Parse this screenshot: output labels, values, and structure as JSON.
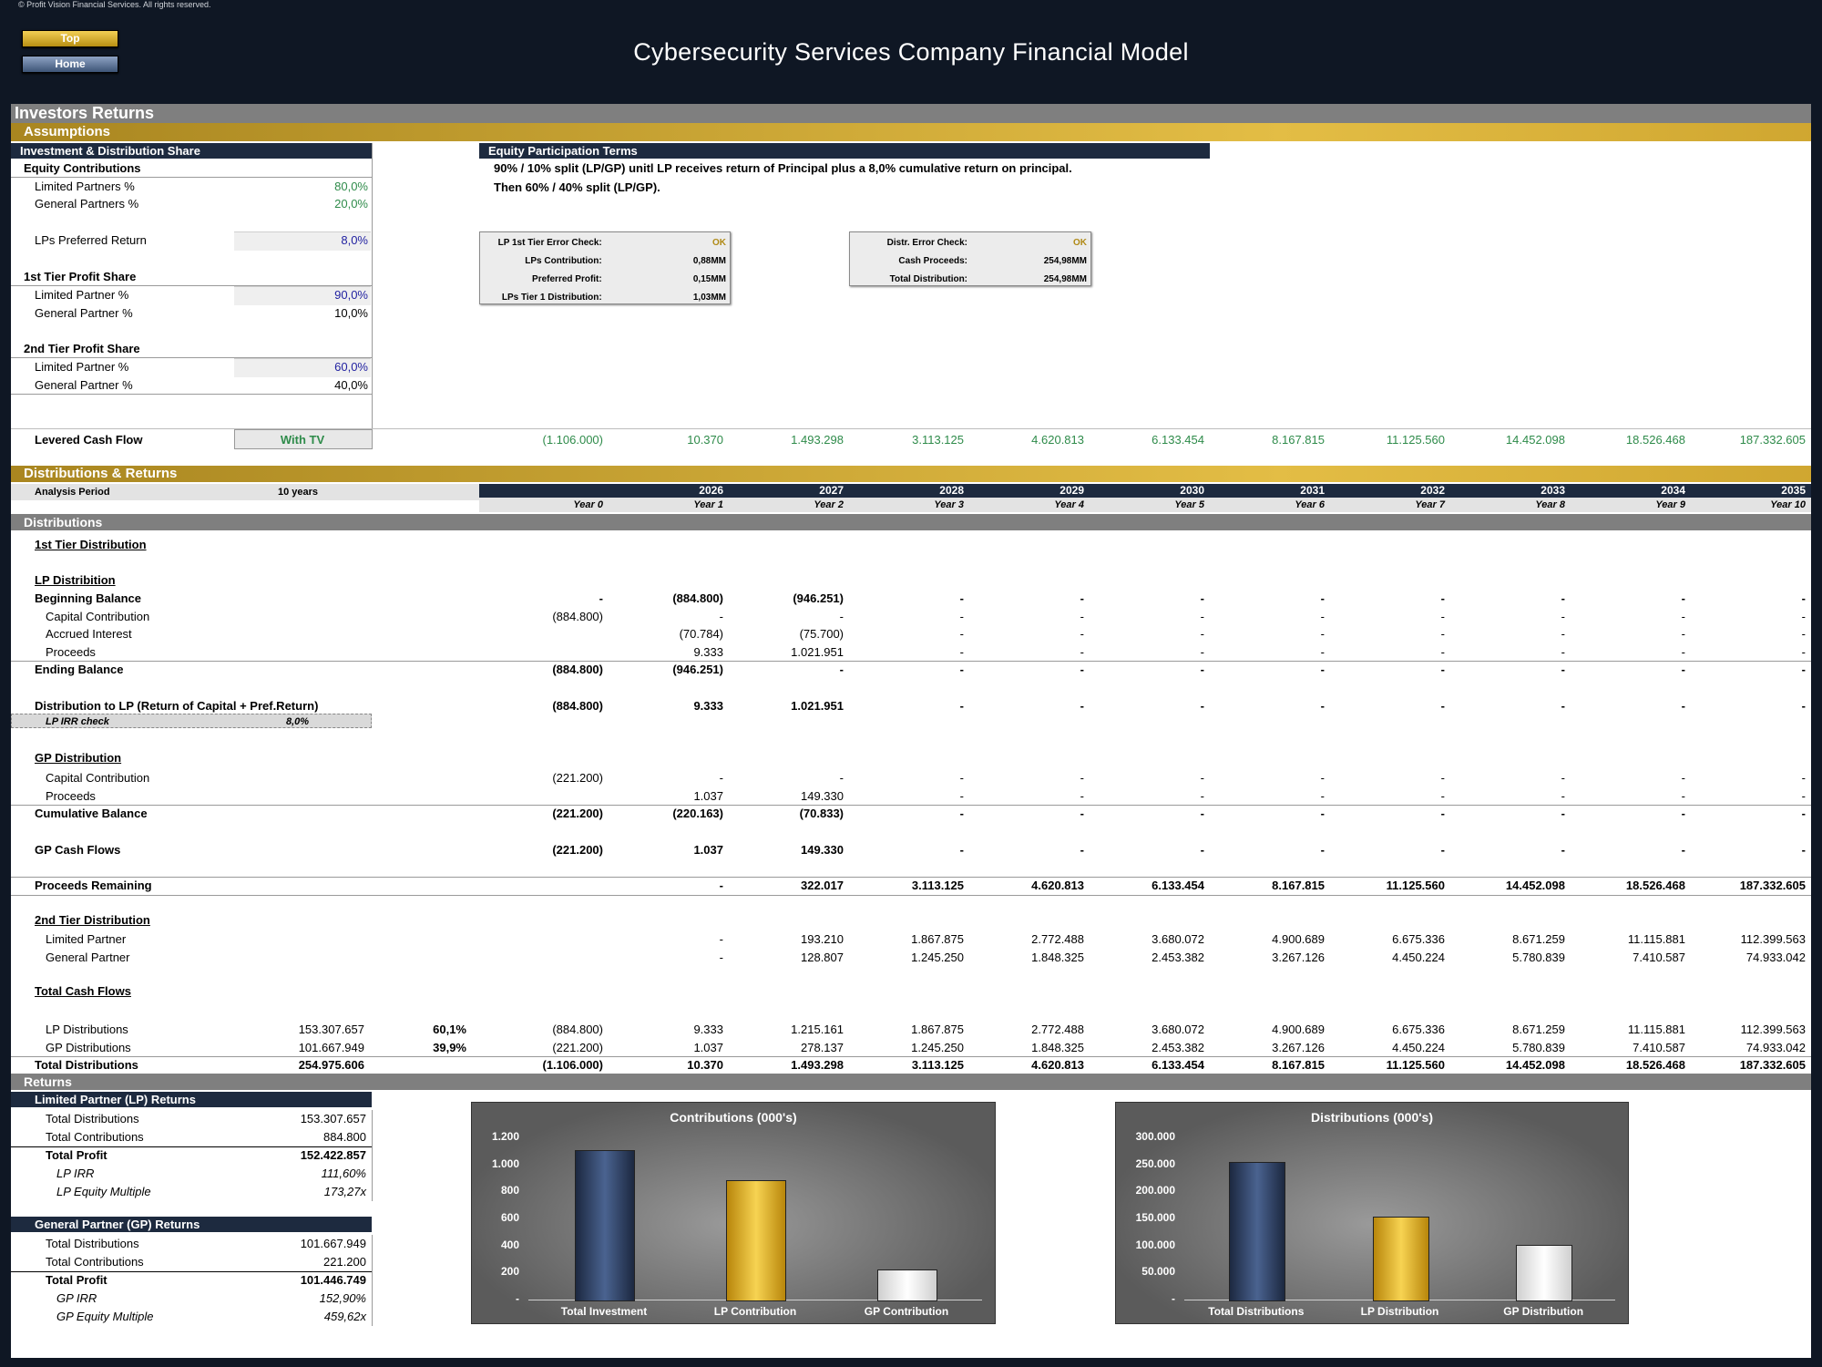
{
  "copyright": "© Profit Vision Financial Services. All rights reserved.",
  "nav": {
    "top": "Top",
    "home": "Home"
  },
  "title": "Cybersecurity Services Company Financial Model",
  "sections": {
    "investors_returns": "Investors Returns",
    "assumptions": "Assumptions",
    "distributions_returns": "Distributions & Returns",
    "distributions": "Distributions",
    "returns": "Returns"
  },
  "assumptions": {
    "header": "Investment & Distribution Share",
    "equity_contributions": "Equity Contributions",
    "lp_pct_label": "Limited Partners %",
    "lp_pct": "80,0%",
    "gp_pct_label": "General Partners %",
    "gp_pct": "20,0%",
    "pref_label": "LPs Preferred Return",
    "pref": "8,0%",
    "tier1": "1st Tier Profit Share",
    "tier1_lp_label": "Limited Partner %",
    "tier1_lp": "90,0%",
    "tier1_gp_label": "General Partner %",
    "tier1_gp": "10,0%",
    "tier2": "2nd Tier Profit Share",
    "tier2_lp_label": "Limited Partner %",
    "tier2_lp": "60,0%",
    "tier2_gp_label": "General Partner %",
    "tier2_gp": "40,0%"
  },
  "terms": {
    "header": "Equity Participation Terms",
    "line1": "90% / 10% split (LP/GP) unitl LP receives return of Principal plus a 8,0% cumulative return on principal.",
    "line2": "Then 60% / 40% split (LP/GP)."
  },
  "check1": [
    {
      "label": "LP 1st Tier Error Check:",
      "value": "OK"
    },
    {
      "label": "LPs Contribution:",
      "value": "0,88MM"
    },
    {
      "label": "Preferred Profit:",
      "value": "0,15MM"
    },
    {
      "label": "LPs Tier 1 Distribution:",
      "value": "1,03MM"
    }
  ],
  "check2": [
    {
      "label": "Distr. Error Check:",
      "value": "OK"
    },
    {
      "label": "Cash Proceeds:",
      "value": "254,98MM"
    },
    {
      "label": "Total Distribution:",
      "value": "254,98MM"
    }
  ],
  "levered": {
    "label": "Levered Cash Flow",
    "selector": "With TV",
    "values": [
      "(1.106.000)",
      "10.370",
      "1.493.298",
      "3.113.125",
      "4.620.813",
      "6.133.454",
      "8.167.815",
      "11.125.560",
      "14.452.098",
      "18.526.468",
      "187.332.605"
    ]
  },
  "period": {
    "label": "Analysis Period",
    "value": "10 years"
  },
  "years": [
    "",
    "2026",
    "2027",
    "2028",
    "2029",
    "2030",
    "2031",
    "2032",
    "2033",
    "2034",
    "2035"
  ],
  "year_idx": [
    "Year 0",
    "Year 1",
    "Year 2",
    "Year 3",
    "Year 4",
    "Year 5",
    "Year 6",
    "Year 7",
    "Year 8",
    "Year 9",
    "Year 10"
  ],
  "dist": {
    "tier1_title": "1st Tier Distribution",
    "lp_title": "LP Distribition",
    "lp_irr_label": "LP IRR check",
    "lp_irr": "8,0%",
    "gp_title": "GP Distribution",
    "tier2_title": "2nd Tier Distribution",
    "total_title": "Total Cash Flows",
    "rows": [
      {
        "label": "Beginning Balance",
        "bold": true,
        "indent": 0,
        "cells": [
          "-",
          "(884.800)",
          "(946.251)",
          "-",
          "-",
          "-",
          "-",
          "-",
          "-",
          "-",
          "-"
        ]
      },
      {
        "label": "Capital Contribution",
        "indent": 1,
        "cells": [
          "(884.800)",
          "-",
          "-",
          "-",
          "-",
          "-",
          "-",
          "-",
          "-",
          "-",
          "-"
        ]
      },
      {
        "label": "Accrued Interest",
        "indent": 1,
        "cells": [
          "",
          "(70.784)",
          "(75.700)",
          "-",
          "-",
          "-",
          "-",
          "-",
          "-",
          "-",
          "-"
        ]
      },
      {
        "label": "Proceeds",
        "indent": 1,
        "cells": [
          "",
          "9.333",
          "1.021.951",
          "-",
          "-",
          "-",
          "-",
          "-",
          "-",
          "-",
          "-"
        ]
      },
      {
        "label": "Ending Balance",
        "bold": true,
        "indent": 0,
        "cells": [
          "(884.800)",
          "(946.251)",
          "-",
          "-",
          "-",
          "-",
          "-",
          "-",
          "-",
          "-",
          "-"
        ]
      },
      {
        "label": "Distribution to LP (Return of Capital + Pref.Return)",
        "bold": true,
        "indent": 0,
        "cells": [
          "(884.800)",
          "9.333",
          "1.021.951",
          "-",
          "-",
          "-",
          "-",
          "-",
          "-",
          "-",
          "-"
        ]
      },
      {
        "label": "Capital Contribution",
        "indent": 1,
        "cells": [
          "(221.200)",
          "-",
          "-",
          "-",
          "-",
          "-",
          "-",
          "-",
          "-",
          "-",
          "-"
        ]
      },
      {
        "label": "Proceeds",
        "indent": 1,
        "cells": [
          "",
          "1.037",
          "149.330",
          "-",
          "-",
          "-",
          "-",
          "-",
          "-",
          "-",
          "-"
        ]
      },
      {
        "label": "Cumulative Balance",
        "bold": true,
        "indent": 0,
        "cells": [
          "(221.200)",
          "(220.163)",
          "(70.833)",
          "-",
          "-",
          "-",
          "-",
          "-",
          "-",
          "-",
          "-"
        ]
      },
      {
        "label": "GP Cash Flows",
        "bold": true,
        "indent": 0,
        "cells": [
          "(221.200)",
          "1.037",
          "149.330",
          "-",
          "-",
          "-",
          "-",
          "-",
          "-",
          "-",
          "-"
        ]
      },
      {
        "label": "Proceeds Remaining",
        "bold": true,
        "indent": 0,
        "cells": [
          "",
          "-",
          "322.017",
          "3.113.125",
          "4.620.813",
          "6.133.454",
          "8.167.815",
          "11.125.560",
          "14.452.098",
          "18.526.468",
          "187.332.605"
        ]
      },
      {
        "label": "Limited Partner",
        "indent": 1,
        "cells": [
          "",
          "-",
          "193.210",
          "1.867.875",
          "2.772.488",
          "3.680.072",
          "4.900.689",
          "6.675.336",
          "8.671.259",
          "11.115.881",
          "112.399.563"
        ]
      },
      {
        "label": "General Partner",
        "indent": 1,
        "cells": [
          "",
          "-",
          "128.807",
          "1.245.250",
          "1.848.325",
          "2.453.382",
          "3.267.126",
          "4.450.224",
          "5.780.839",
          "7.410.587",
          "74.933.042"
        ]
      },
      {
        "label": "LP Distributions",
        "indent": 1,
        "total": "153.307.657",
        "pct": "60,1%",
        "cells": [
          "(884.800)",
          "9.333",
          "1.215.161",
          "1.867.875",
          "2.772.488",
          "3.680.072",
          "4.900.689",
          "6.675.336",
          "8.671.259",
          "11.115.881",
          "112.399.563"
        ]
      },
      {
        "label": "GP Distributions",
        "indent": 1,
        "total": "101.667.949",
        "pct": "39,9%",
        "cells": [
          "(221.200)",
          "1.037",
          "278.137",
          "1.245.250",
          "1.848.325",
          "2.453.382",
          "3.267.126",
          "4.450.224",
          "5.780.839",
          "7.410.587",
          "74.933.042"
        ]
      },
      {
        "label": "Total Distributions",
        "bold": true,
        "indent": 0,
        "total": "254.975.606",
        "cells": [
          "(1.106.000)",
          "10.370",
          "1.493.298",
          "3.113.125",
          "4.620.813",
          "6.133.454",
          "8.167.815",
          "11.125.560",
          "14.452.098",
          "18.526.468",
          "187.332.605"
        ]
      }
    ]
  },
  "lp_returns": {
    "header": "Limited Partner (LP) Returns",
    "rows": [
      {
        "label": "Total Distributions",
        "value": "153.307.657"
      },
      {
        "label": "Total Contributions",
        "value": "884.800"
      },
      {
        "label": "Total Profit",
        "value": "152.422.857",
        "bold": true
      },
      {
        "label": "LP IRR",
        "value": "111,60%",
        "italic": true
      },
      {
        "label": "LP Equity Multiple",
        "value": "173,27x",
        "italic": true
      }
    ]
  },
  "gp_returns": {
    "header": "General Partner (GP) Returns",
    "rows": [
      {
        "label": "Total Distributions",
        "value": "101.667.949"
      },
      {
        "label": "Total Contributions",
        "value": "221.200"
      },
      {
        "label": "Total Profit",
        "value": "101.446.749",
        "bold": true
      },
      {
        "label": "GP IRR",
        "value": "152,90%",
        "italic": true
      },
      {
        "label": "GP Equity Multiple",
        "value": "459,62x",
        "italic": true
      }
    ]
  },
  "chart_data": [
    {
      "type": "bar",
      "title": "Contributions (000's)",
      "categories": [
        "Total Investment",
        "LP Contribution",
        "GP Contribution"
      ],
      "values": [
        1106,
        885,
        221
      ],
      "ylim": [
        0,
        1200
      ],
      "yticks": [
        "-",
        "200",
        "400",
        "600",
        "800",
        "1.000",
        "1.200"
      ],
      "colors": [
        "#2c3f63",
        "#e9b923",
        "#f4f4f4"
      ]
    },
    {
      "type": "bar",
      "title": "Distributions (000's)",
      "categories": [
        "Total Distributions",
        "LP Distribution",
        "GP Distribution"
      ],
      "values": [
        254976,
        153308,
        101668
      ],
      "ylim": [
        0,
        300000
      ],
      "yticks": [
        "-",
        "50.000",
        "100.000",
        "150.000",
        "200.000",
        "250.000",
        "300.000"
      ],
      "colors": [
        "#2c3f63",
        "#e9b923",
        "#f4f4f4"
      ]
    }
  ]
}
